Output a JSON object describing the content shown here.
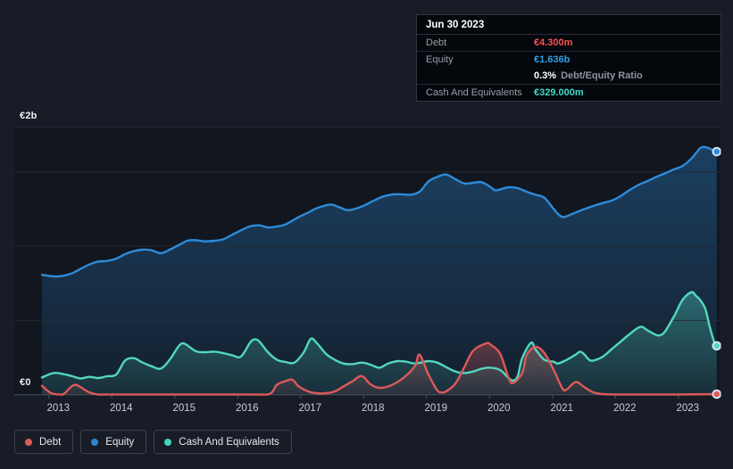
{
  "tooltip": {
    "date": "Jun 30 2023",
    "debt_label": "Debt",
    "debt_value": "€4.300m",
    "equity_label": "Equity",
    "equity_value": "€1.636b",
    "ratio_value": "0.3%",
    "ratio_label": "Debt/Equity Ratio",
    "cash_label": "Cash And Equivalents",
    "cash_value": "€329.000m",
    "value_colors": {
      "debt": "#FF5252",
      "equity": "#2F9FE8",
      "cash": "#41D9C5"
    }
  },
  "y_axis": {
    "top_label": "€2b",
    "bottom_label": "€0",
    "max_value_b": 1.8,
    "gridline_values_b": [
      1.8,
      1.5,
      1.0,
      0.5
    ]
  },
  "x_axis": {
    "tick_years": [
      2013,
      2014,
      2015,
      2016,
      2017,
      2018,
      2019,
      2020,
      2021,
      2022,
      2023
    ]
  },
  "legend": {
    "items": [
      {
        "label": "Debt",
        "color": "#E05C5C"
      },
      {
        "label": "Equity",
        "color": "#2E87D6"
      },
      {
        "label": "Cash And Equivalents",
        "color": "#45D3BC"
      }
    ]
  },
  "colors": {
    "page_bg": "#171C26",
    "plot_bg": "#11161F",
    "gridline": "#252B35",
    "axis": "#49515D",
    "tick_label": "#C7CDD5"
  },
  "chart_data": {
    "type": "area",
    "x_unit": "decimal_year",
    "y_unit": "EUR_billions",
    "xlim": [
      2012.85,
      2023.65
    ],
    "ylim": [
      0,
      1.8
    ],
    "legend_position": "bottom-left",
    "grid": "horizontal",
    "end_markers": {
      "date": "Jun 30 2023",
      "Equity": 1.636,
      "Cash And Equivalents": 0.329,
      "Debt": 0.0043
    },
    "series": [
      {
        "name": "Equity",
        "color": "#2E8BD9",
        "points": [
          [
            2012.89,
            0.807
          ],
          [
            2013.07,
            0.796
          ],
          [
            2013.22,
            0.8
          ],
          [
            2013.36,
            0.816
          ],
          [
            2013.5,
            0.846
          ],
          [
            2013.64,
            0.876
          ],
          [
            2013.78,
            0.896
          ],
          [
            2013.92,
            0.9
          ],
          [
            2014.07,
            0.916
          ],
          [
            2014.21,
            0.946
          ],
          [
            2014.35,
            0.966
          ],
          [
            2014.49,
            0.976
          ],
          [
            2014.63,
            0.972
          ],
          [
            2014.78,
            0.952
          ],
          [
            2014.92,
            0.976
          ],
          [
            2015.06,
            1.006
          ],
          [
            2015.2,
            1.036
          ],
          [
            2015.34,
            1.04
          ],
          [
            2015.48,
            1.032
          ],
          [
            2015.63,
            1.036
          ],
          [
            2015.77,
            1.046
          ],
          [
            2015.91,
            1.076
          ],
          [
            2016.05,
            1.106
          ],
          [
            2016.19,
            1.132
          ],
          [
            2016.34,
            1.14
          ],
          [
            2016.48,
            1.126
          ],
          [
            2016.62,
            1.132
          ],
          [
            2016.76,
            1.146
          ],
          [
            2016.97,
            1.196
          ],
          [
            2017.12,
            1.226
          ],
          [
            2017.26,
            1.256
          ],
          [
            2017.47,
            1.28
          ],
          [
            2017.61,
            1.262
          ],
          [
            2017.75,
            1.242
          ],
          [
            2017.9,
            1.255
          ],
          [
            2018.04,
            1.28
          ],
          [
            2018.18,
            1.31
          ],
          [
            2018.32,
            1.335
          ],
          [
            2018.46,
            1.348
          ],
          [
            2018.61,
            1.349
          ],
          [
            2018.75,
            1.346
          ],
          [
            2018.89,
            1.366
          ],
          [
            2019.03,
            1.436
          ],
          [
            2019.17,
            1.466
          ],
          [
            2019.31,
            1.482
          ],
          [
            2019.46,
            1.45
          ],
          [
            2019.6,
            1.422
          ],
          [
            2019.74,
            1.426
          ],
          [
            2019.88,
            1.43
          ],
          [
            2020.02,
            1.396
          ],
          [
            2020.09,
            1.376
          ],
          [
            2020.17,
            1.382
          ],
          [
            2020.31,
            1.396
          ],
          [
            2020.45,
            1.39
          ],
          [
            2020.59,
            1.366
          ],
          [
            2020.73,
            1.346
          ],
          [
            2020.87,
            1.326
          ],
          [
            2021.02,
            1.25
          ],
          [
            2021.09,
            1.216
          ],
          [
            2021.16,
            1.196
          ],
          [
            2021.23,
            1.202
          ],
          [
            2021.37,
            1.226
          ],
          [
            2021.51,
            1.25
          ],
          [
            2021.65,
            1.27
          ],
          [
            2021.8,
            1.29
          ],
          [
            2021.94,
            1.306
          ],
          [
            2022.08,
            1.336
          ],
          [
            2022.22,
            1.376
          ],
          [
            2022.36,
            1.41
          ],
          [
            2022.5,
            1.436
          ],
          [
            2022.65,
            1.466
          ],
          [
            2022.79,
            1.49
          ],
          [
            2022.93,
            1.516
          ],
          [
            2023.07,
            1.54
          ],
          [
            2023.21,
            1.59
          ],
          [
            2023.35,
            1.66
          ],
          [
            2023.43,
            1.666
          ],
          [
            2023.5,
            1.656
          ],
          [
            2023.61,
            1.636
          ]
        ]
      },
      {
        "name": "Cash And Equivalents",
        "color": "#52D7BE",
        "points": [
          [
            2012.89,
            0.116
          ],
          [
            2013.07,
            0.146
          ],
          [
            2013.22,
            0.14
          ],
          [
            2013.36,
            0.126
          ],
          [
            2013.5,
            0.11
          ],
          [
            2013.64,
            0.12
          ],
          [
            2013.78,
            0.112
          ],
          [
            2013.92,
            0.124
          ],
          [
            2014.07,
            0.136
          ],
          [
            2014.21,
            0.23
          ],
          [
            2014.35,
            0.246
          ],
          [
            2014.49,
            0.216
          ],
          [
            2014.63,
            0.192
          ],
          [
            2014.78,
            0.176
          ],
          [
            2014.92,
            0.236
          ],
          [
            2015.06,
            0.326
          ],
          [
            2015.13,
            0.346
          ],
          [
            2015.2,
            0.332
          ],
          [
            2015.34,
            0.292
          ],
          [
            2015.48,
            0.286
          ],
          [
            2015.63,
            0.29
          ],
          [
            2015.77,
            0.28
          ],
          [
            2015.91,
            0.266
          ],
          [
            2016.05,
            0.256
          ],
          [
            2016.19,
            0.346
          ],
          [
            2016.26,
            0.372
          ],
          [
            2016.34,
            0.36
          ],
          [
            2016.48,
            0.286
          ],
          [
            2016.62,
            0.236
          ],
          [
            2016.76,
            0.22
          ],
          [
            2016.9,
            0.216
          ],
          [
            2017.05,
            0.286
          ],
          [
            2017.16,
            0.376
          ],
          [
            2017.26,
            0.346
          ],
          [
            2017.4,
            0.276
          ],
          [
            2017.54,
            0.236
          ],
          [
            2017.68,
            0.21
          ],
          [
            2017.82,
            0.206
          ],
          [
            2017.97,
            0.216
          ],
          [
            2018.11,
            0.202
          ],
          [
            2018.25,
            0.182
          ],
          [
            2018.39,
            0.21
          ],
          [
            2018.54,
            0.226
          ],
          [
            2018.68,
            0.222
          ],
          [
            2018.82,
            0.21
          ],
          [
            2019.03,
            0.226
          ],
          [
            2019.17,
            0.216
          ],
          [
            2019.31,
            0.186
          ],
          [
            2019.46,
            0.156
          ],
          [
            2019.6,
            0.146
          ],
          [
            2019.74,
            0.156
          ],
          [
            2019.88,
            0.176
          ],
          [
            2020.02,
            0.182
          ],
          [
            2020.17,
            0.166
          ],
          [
            2020.31,
            0.11
          ],
          [
            2020.38,
            0.095
          ],
          [
            2020.45,
            0.126
          ],
          [
            2020.52,
            0.246
          ],
          [
            2020.66,
            0.35
          ],
          [
            2020.73,
            0.306
          ],
          [
            2020.87,
            0.236
          ],
          [
            2021.02,
            0.222
          ],
          [
            2021.09,
            0.21
          ],
          [
            2021.23,
            0.236
          ],
          [
            2021.37,
            0.27
          ],
          [
            2021.44,
            0.29
          ],
          [
            2021.51,
            0.27
          ],
          [
            2021.58,
            0.236
          ],
          [
            2021.65,
            0.23
          ],
          [
            2021.8,
            0.256
          ],
          [
            2021.94,
            0.306
          ],
          [
            2022.08,
            0.356
          ],
          [
            2022.22,
            0.406
          ],
          [
            2022.36,
            0.45
          ],
          [
            2022.43,
            0.456
          ],
          [
            2022.5,
            0.436
          ],
          [
            2022.65,
            0.402
          ],
          [
            2022.72,
            0.402
          ],
          [
            2022.79,
            0.426
          ],
          [
            2022.93,
            0.526
          ],
          [
            2023.07,
            0.64
          ],
          [
            2023.21,
            0.69
          ],
          [
            2023.28,
            0.666
          ],
          [
            2023.35,
            0.636
          ],
          [
            2023.43,
            0.576
          ],
          [
            2023.5,
            0.456
          ],
          [
            2023.57,
            0.356
          ],
          [
            2023.61,
            0.329
          ]
        ]
      },
      {
        "name": "Debt",
        "color": "#DD5959",
        "points": [
          [
            2012.89,
            0.06
          ],
          [
            2013.0,
            0.02
          ],
          [
            2013.07,
            0.006
          ],
          [
            2013.22,
            0.001
          ],
          [
            2013.36,
            0.056
          ],
          [
            2013.43,
            0.066
          ],
          [
            2013.5,
            0.052
          ],
          [
            2013.64,
            0.016
          ],
          [
            2013.78,
            0.002
          ],
          [
            2014.0,
            0.002
          ],
          [
            2014.5,
            0.002
          ],
          [
            2015.0,
            0.002
          ],
          [
            2015.5,
            0.002
          ],
          [
            2016.0,
            0.002
          ],
          [
            2016.48,
            0.002
          ],
          [
            2016.62,
            0.066
          ],
          [
            2016.76,
            0.092
          ],
          [
            2016.87,
            0.1
          ],
          [
            2016.97,
            0.056
          ],
          [
            2017.12,
            0.022
          ],
          [
            2017.26,
            0.01
          ],
          [
            2017.4,
            0.01
          ],
          [
            2017.54,
            0.022
          ],
          [
            2017.68,
            0.056
          ],
          [
            2017.82,
            0.09
          ],
          [
            2017.97,
            0.126
          ],
          [
            2018.11,
            0.07
          ],
          [
            2018.25,
            0.046
          ],
          [
            2018.39,
            0.056
          ],
          [
            2018.54,
            0.086
          ],
          [
            2018.68,
            0.13
          ],
          [
            2018.82,
            0.196
          ],
          [
            2018.89,
            0.27
          ],
          [
            2019.03,
            0.136
          ],
          [
            2019.17,
            0.03
          ],
          [
            2019.24,
            0.016
          ],
          [
            2019.31,
            0.022
          ],
          [
            2019.46,
            0.076
          ],
          [
            2019.6,
            0.186
          ],
          [
            2019.74,
            0.296
          ],
          [
            2019.95,
            0.346
          ],
          [
            2020.02,
            0.336
          ],
          [
            2020.17,
            0.276
          ],
          [
            2020.31,
            0.106
          ],
          [
            2020.38,
            0.08
          ],
          [
            2020.52,
            0.146
          ],
          [
            2020.59,
            0.266
          ],
          [
            2020.73,
            0.322
          ],
          [
            2020.87,
            0.282
          ],
          [
            2021.02,
            0.166
          ],
          [
            2021.16,
            0.042
          ],
          [
            2021.23,
            0.036
          ],
          [
            2021.37,
            0.086
          ],
          [
            2021.51,
            0.05
          ],
          [
            2021.65,
            0.016
          ],
          [
            2021.8,
            0.004
          ],
          [
            2022.0,
            0.002
          ],
          [
            2022.5,
            0.002
          ],
          [
            2023.0,
            0.002
          ],
          [
            2023.61,
            0.004
          ]
        ]
      }
    ]
  }
}
